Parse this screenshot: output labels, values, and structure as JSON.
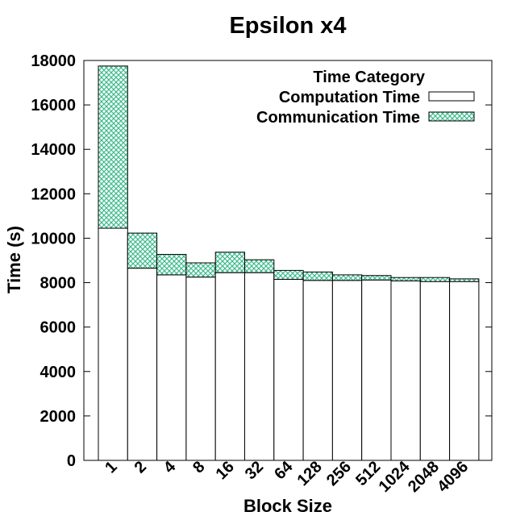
{
  "chart_data": {
    "type": "bar",
    "stacked": true,
    "title": "Epsilon x4",
    "xlabel": "Block Size",
    "ylabel": "Time (s)",
    "ylim": [
      0,
      18000
    ],
    "yticks": [
      0,
      2000,
      4000,
      6000,
      8000,
      10000,
      12000,
      14000,
      16000,
      18000
    ],
    "categories": [
      "1",
      "2",
      "4",
      "8",
      "16",
      "32",
      "64",
      "128",
      "256",
      "512",
      "1024",
      "2048",
      "4096"
    ],
    "legend": {
      "title": "Time Category",
      "position": "top-right"
    },
    "grid": false,
    "series": [
      {
        "name": "Computation Time",
        "color": "#ffffff",
        "pattern": "none",
        "values": [
          10450,
          8650,
          8350,
          8250,
          8450,
          8450,
          8150,
          8100,
          8100,
          8120,
          8080,
          8050,
          8050
        ]
      },
      {
        "name": "Communication Time",
        "color": "#3cba8c",
        "pattern": "crosshatch",
        "values": [
          7300,
          1580,
          920,
          640,
          920,
          580,
          400,
          380,
          250,
          200,
          150,
          180,
          120
        ]
      }
    ]
  }
}
